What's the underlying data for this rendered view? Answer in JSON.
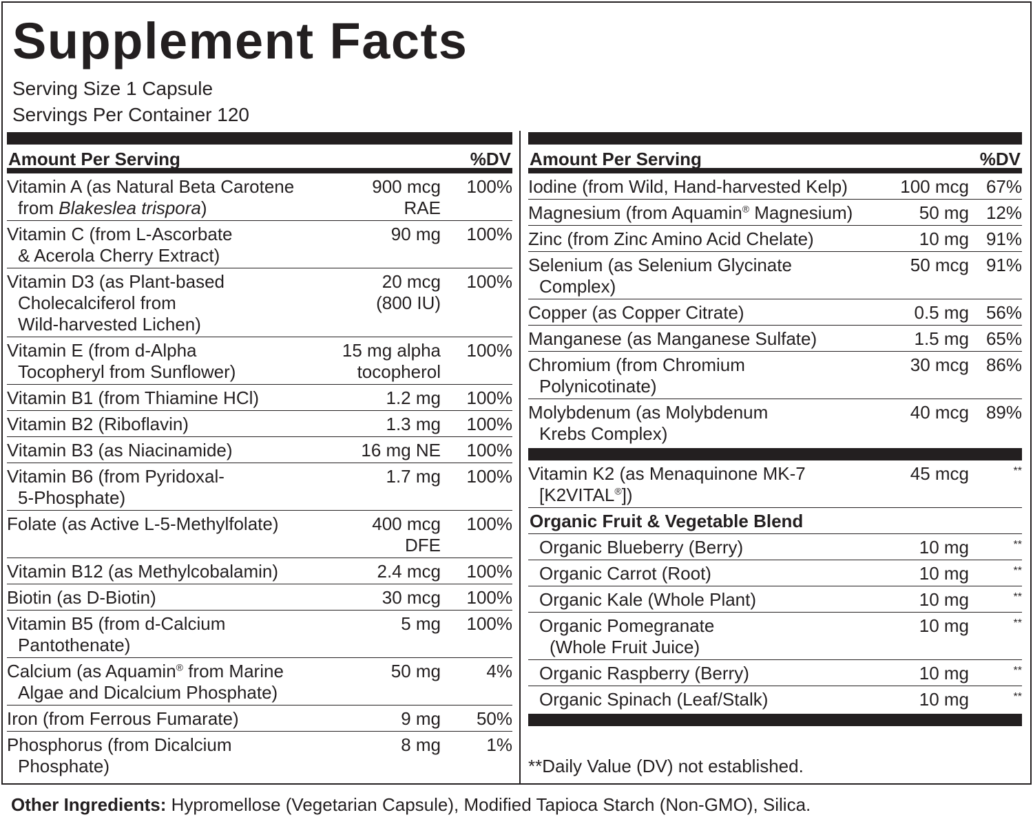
{
  "title": "Supplement Facts",
  "serving_size": "Serving Size 1 Capsule",
  "servings_per_container": "Servings Per Container 120",
  "header": {
    "amount": "Amount Per Serving",
    "dv": "%DV"
  },
  "left": [
    {
      "name": [
        {
          "t": "Vitamin A (as Natural Beta Carotene\nfrom "
        },
        {
          "t": "Blakeslea trispora",
          "i": true
        },
        {
          "t": ")"
        }
      ],
      "amount": "900 mcg\nRAE",
      "dv": "100%"
    },
    {
      "name": [
        {
          "t": "Vitamin C (from L-Ascorbate\n& Acerola Cherry Extract)"
        }
      ],
      "amount": "90 mg",
      "dv": "100%"
    },
    {
      "name": [
        {
          "t": "Vitamin D3 (as Plant-based\nCholecalciferol from\n Wild-harvested Lichen)"
        }
      ],
      "amount": "20 mcg\n(800 IU)",
      "dv": "100%"
    },
    {
      "name": [
        {
          "t": "Vitamin E (from d-Alpha\nTocopheryl from Sunflower)"
        }
      ],
      "amount": "15 mg alpha\ntocopherol",
      "dv": "100%"
    },
    {
      "name": [
        {
          "t": "Vitamin B1 (from Thiamine HCl)"
        }
      ],
      "amount": "1.2 mg",
      "dv": "100%"
    },
    {
      "name": [
        {
          "t": "Vitamin B2 (Riboflavin)"
        }
      ],
      "amount": "1.3 mg",
      "dv": "100%"
    },
    {
      "name": [
        {
          "t": "Vitamin B3 (as Niacinamide)"
        }
      ],
      "amount": "16 mg NE",
      "dv": "100%"
    },
    {
      "name": [
        {
          "t": "Vitamin B6 (from Pyridoxal-\n5-Phosphate)"
        }
      ],
      "amount": "1.7 mg",
      "dv": "100%"
    },
    {
      "name": [
        {
          "t": "Folate (as Active L-5-Methylfolate)"
        }
      ],
      "amount": "400 mcg\nDFE",
      "dv": "100%"
    },
    {
      "name": [
        {
          "t": "Vitamin B12 (as Methylcobalamin)"
        }
      ],
      "amount": "2.4 mcg",
      "dv": "100%"
    },
    {
      "name": [
        {
          "t": "Biotin (as D-Biotin)"
        }
      ],
      "amount": "30 mcg",
      "dv": "100%"
    },
    {
      "name": [
        {
          "t": "Vitamin B5 (from d-Calcium Pantothenate)"
        }
      ],
      "amount": "5 mg",
      "dv": "100%"
    },
    {
      "name": [
        {
          "t": "Calcium (as Aquamin"
        },
        {
          "t": "®",
          "sup": true
        },
        {
          "t": " from Marine\nAlgae and Dicalcium Phosphate)"
        }
      ],
      "amount": "50 mg",
      "dv": "4%"
    },
    {
      "name": [
        {
          "t": "Iron (from Ferrous Fumarate)"
        }
      ],
      "amount": "9 mg",
      "dv": "50%"
    },
    {
      "name": [
        {
          "t": "Phosphorus (from Dicalcium\nPhosphate)"
        }
      ],
      "amount": "8 mg",
      "dv": "1%"
    }
  ],
  "right": [
    {
      "name": [
        {
          "t": "Iodine (from Wild, Hand-harvested Kelp)"
        }
      ],
      "amount": "100 mcg",
      "dv": "67%"
    },
    {
      "name": [
        {
          "t": "Magnesium (from Aquamin"
        },
        {
          "t": "®",
          "sup": true
        },
        {
          "t": " Magnesium)"
        }
      ],
      "amount": "50 mg",
      "dv": "12%"
    },
    {
      "name": [
        {
          "t": "Zinc (from Zinc Amino Acid Chelate)"
        }
      ],
      "amount": "10 mg",
      "dv": "91%"
    },
    {
      "name": [
        {
          "t": "Selenium (as Selenium Glycinate\nComplex)"
        }
      ],
      "amount": "50 mcg",
      "dv": "91%"
    },
    {
      "name": [
        {
          "t": "Copper (as Copper Citrate)"
        }
      ],
      "amount": "0.5 mg",
      "dv": "56%"
    },
    {
      "name": [
        {
          "t": "Manganese (as Manganese Sulfate)"
        }
      ],
      "amount": "1.5 mg",
      "dv": "65%"
    },
    {
      "name": [
        {
          "t": "Chromium (from Chromium\nPolynicotinate)"
        }
      ],
      "amount": "30 mcg",
      "dv": "86%"
    },
    {
      "name": [
        {
          "t": "Molybdenum (as Molybdenum\nKrebs Complex)"
        }
      ],
      "amount": "40 mcg",
      "dv": "89%"
    }
  ],
  "right2": [
    {
      "name": [
        {
          "t": "Vitamin K2 (as Menaquinone MK-7\n[K2VITAL"
        },
        {
          "t": "®",
          "sup": true
        },
        {
          "t": "])"
        }
      ],
      "amount": "45 mcg",
      "dv": "**"
    }
  ],
  "blend_title": "Organic Fruit & Vegetable Blend",
  "blend": [
    {
      "name": [
        {
          "t": "Organic Blueberry (Berry)"
        }
      ],
      "amount": "10 mg",
      "dv": "**"
    },
    {
      "name": [
        {
          "t": "Organic Carrot (Root)"
        }
      ],
      "amount": "10 mg",
      "dv": "**"
    },
    {
      "name": [
        {
          "t": "Organic Kale (Whole Plant)"
        }
      ],
      "amount": "10 mg",
      "dv": "**"
    },
    {
      "name": [
        {
          "t": "Organic Pomegranate\n(Whole Fruit Juice)"
        }
      ],
      "amount": "10 mg",
      "dv": "**"
    },
    {
      "name": [
        {
          "t": "Organic Raspberry (Berry)"
        }
      ],
      "amount": "10 mg",
      "dv": "**"
    },
    {
      "name": [
        {
          "t": "Organic Spinach (Leaf/Stalk)"
        }
      ],
      "amount": "10 mg",
      "dv": "**"
    }
  ],
  "footnote": "**Daily Value (DV) not established.",
  "other_label": "Other Ingredients:",
  "other_text": " Hypromellose (Vegetarian Capsule), Modified Tapioca Starch (Non-GMO), Silica."
}
